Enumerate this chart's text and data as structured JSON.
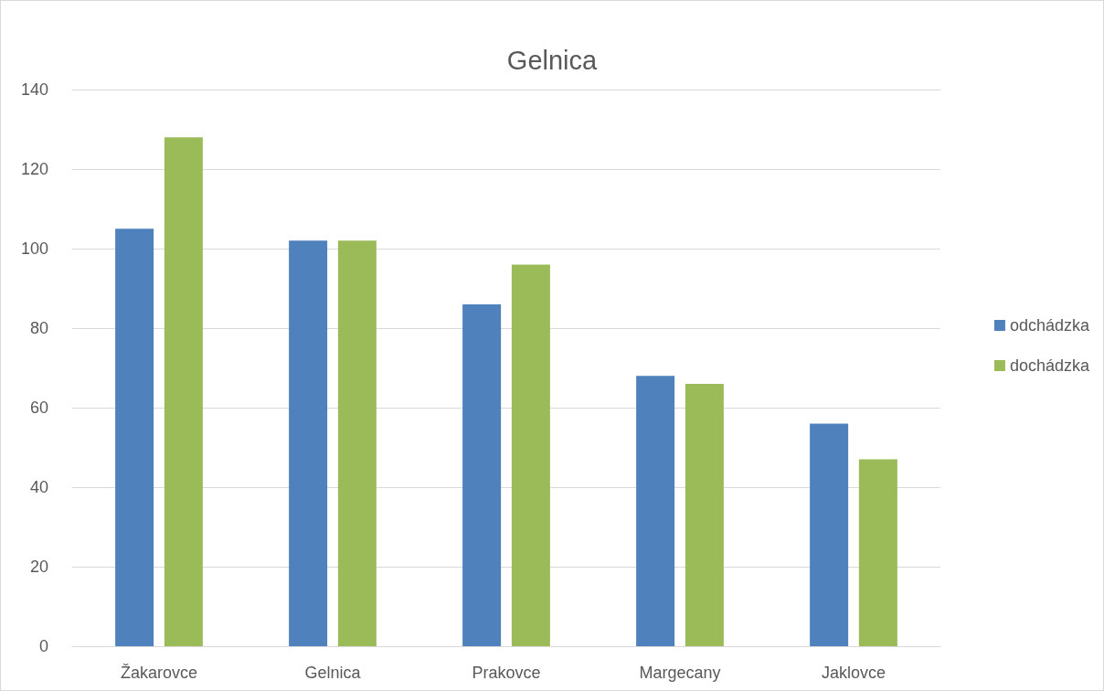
{
  "chart_data": {
    "type": "bar",
    "title": "Gelnica",
    "categories": [
      "Žakarovce",
      "Gelnica",
      "Prakovce",
      "Margecany",
      "Jaklovce"
    ],
    "series": [
      {
        "name": "odchádzka",
        "color": "#4f81bd",
        "values": [
          105,
          102,
          86,
          68,
          56
        ]
      },
      {
        "name": "dochádzka",
        "color": "#9bbb59",
        "values": [
          128,
          102,
          96,
          66,
          47
        ]
      }
    ],
    "ylim": [
      0,
      140
    ],
    "yticks": [
      0,
      20,
      40,
      60,
      80,
      100,
      120,
      140
    ],
    "grid": "y",
    "legend": "right"
  }
}
